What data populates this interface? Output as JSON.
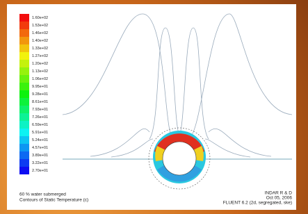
{
  "colorbar": {
    "labels": [
      "1.60e+02",
      "1.53e+02",
      "1.46e+02",
      "1.40e+02",
      "1.33e+02",
      "1.27e+02",
      "1.20e+02",
      "1.13e+02",
      "1.06e+02",
      "9.95e+01",
      "9.28e+01",
      "8.61e+01",
      "7.93e+01",
      "7.26e+01",
      "6.59e+01",
      "5.91e+01",
      "5.24e+01",
      "4.57e+01",
      "3.89e+01",
      "3.22e+01",
      "2.70e+01"
    ]
  },
  "footer": {
    "left": [
      "60 % water submerged",
      "Contours of Static Temperature (c)"
    ],
    "right": [
      "INDAR R & D",
      "Oct 05, 2006",
      "FLUENT 6.2 (2d, segregated, ske)"
    ]
  }
}
